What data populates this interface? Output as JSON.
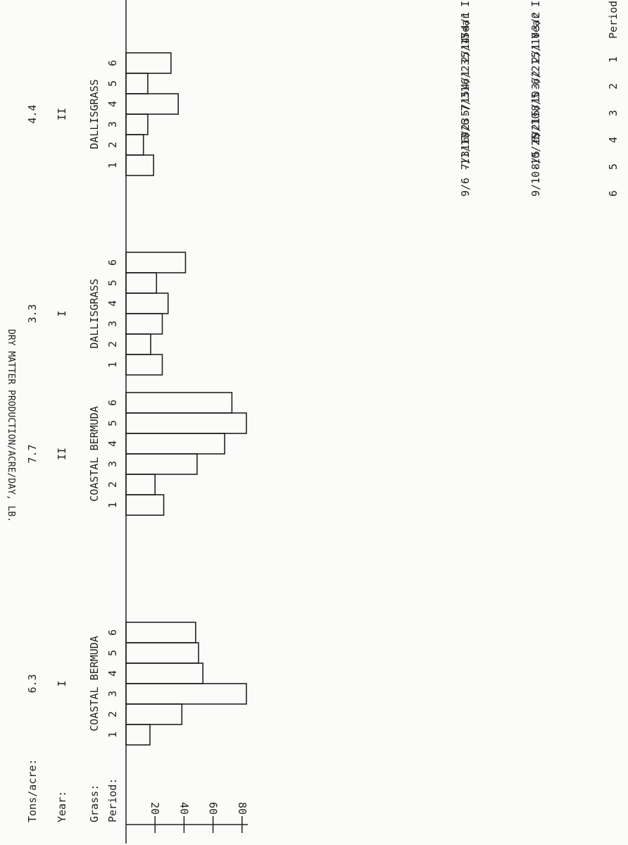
{
  "chart_data": {
    "type": "bar",
    "ylabel": "DRY MATTER PRODUCTION/ACRE/DAY, LB.",
    "y_ticks": [
      "20",
      "40",
      "60",
      "80"
    ],
    "ylim": [
      0,
      100
    ],
    "row_labels": {
      "period": "Period:",
      "grass": "Grass:",
      "year": "Year:",
      "tons": "Tons/acre:"
    },
    "groups": [
      {
        "grass": "COASTAL BERMUDA",
        "year": "I",
        "tons": "6.3",
        "periods": [
          "1",
          "2",
          "3",
          "4",
          "5",
          "6"
        ],
        "values": [
          16.5,
          38.5,
          83,
          53,
          50,
          48
        ]
      },
      {
        "grass": "COASTAL BERMUDA",
        "year": "II",
        "tons": "7.7",
        "periods": [
          "1",
          "2",
          "3",
          "4",
          "5",
          "6"
        ],
        "values": [
          26,
          20,
          49,
          68,
          83,
          73
        ]
      },
      {
        "grass": "DALLISGRASS",
        "year": "I",
        "tons": "3.3",
        "periods": [
          "1",
          "2",
          "3",
          "4",
          "5",
          "6"
        ],
        "values": [
          25,
          17,
          25,
          29,
          21,
          41
        ]
      },
      {
        "grass": "DALLISGRASS",
        "year": "II",
        "tons": "4.4",
        "periods": [
          "1",
          "2",
          "3",
          "4",
          "5",
          "6"
        ],
        "values": [
          19,
          12,
          15,
          36,
          15,
          31
        ]
      }
    ],
    "period_table": {
      "headers": [
        "Period",
        "Year I",
        "Year II"
      ],
      "rows": [
        [
          "1",
          "2/1 -3/2",
          "2/14-4/1"
        ],
        [
          "2",
          "3/2 -5/10",
          "4/1 -5/15"
        ],
        [
          "3",
          "5/10-6/21",
          "5/15-6/23"
        ],
        [
          "4",
          "6/21-8/5",
          "6/23-7/31"
        ],
        [
          "5",
          "8/5 -9/10",
          "7/31-9/6"
        ],
        [
          "6",
          "9/10-10/25",
          "9/6 -11/17"
        ]
      ]
    }
  }
}
